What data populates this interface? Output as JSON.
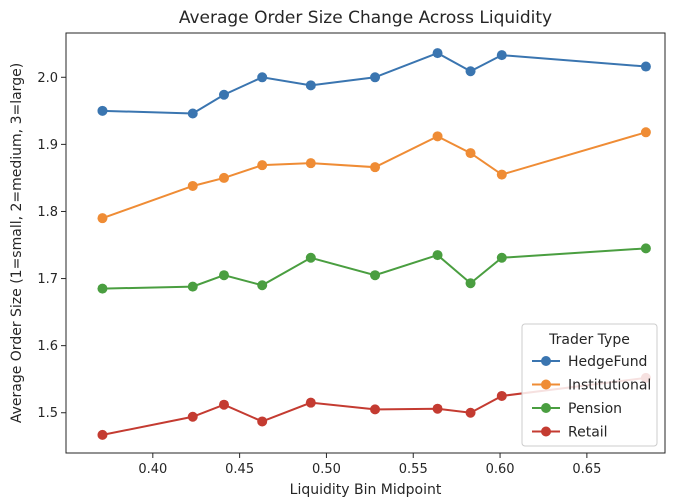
{
  "chart_data": {
    "type": "line",
    "title": "Average Order Size Change Across Liquidity",
    "xlabel": "Liquidity Bin Midpoint",
    "ylabel": "Average Order Size (1=small, 2=medium, 3=large)",
    "xlim": [
      0.35,
      0.695
    ],
    "ylim": [
      1.44,
      2.066
    ],
    "xticks": [
      0.4,
      0.45,
      0.5,
      0.55,
      0.6,
      0.65
    ],
    "xtick_labels": [
      "0.40",
      "0.45",
      "0.50",
      "0.55",
      "0.60",
      "0.65"
    ],
    "yticks": [
      1.5,
      1.6,
      1.7,
      1.8,
      1.9,
      2.0
    ],
    "ytick_labels": [
      "1.5",
      "1.6",
      "1.7",
      "1.8",
      "1.9",
      "2.0"
    ],
    "x": [
      0.371,
      0.423,
      0.441,
      0.463,
      0.491,
      0.528,
      0.564,
      0.583,
      0.601,
      0.684
    ],
    "legend_title": "Trader Type",
    "legend_position": "lower-right",
    "series": [
      {
        "name": "HedgeFund",
        "color": "#3a75b0",
        "values": [
          1.95,
          1.946,
          1.974,
          2.0,
          1.988,
          2.0,
          2.036,
          2.009,
          2.033,
          2.016
        ]
      },
      {
        "name": "Institutional",
        "color": "#ef8c35",
        "values": [
          1.79,
          1.838,
          1.85,
          1.869,
          1.872,
          1.866,
          1.912,
          1.887,
          1.855,
          1.918
        ]
      },
      {
        "name": "Pension",
        "color": "#4a9e40",
        "values": [
          1.685,
          1.688,
          1.705,
          1.69,
          1.731,
          1.705,
          1.735,
          1.693,
          1.731,
          1.745
        ]
      },
      {
        "name": "Retail",
        "color": "#c43b31",
        "values": [
          1.467,
          1.494,
          1.512,
          1.487,
          1.515,
          1.505,
          1.506,
          1.5,
          1.525,
          1.552
        ]
      }
    ]
  }
}
